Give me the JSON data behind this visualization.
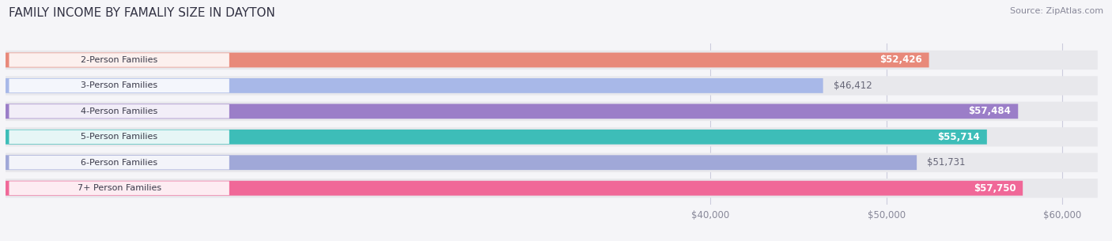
{
  "title": "FAMILY INCOME BY FAMALIY SIZE IN DAYTON",
  "source": "Source: ZipAtlas.com",
  "categories": [
    "2-Person Families",
    "3-Person Families",
    "4-Person Families",
    "5-Person Families",
    "6-Person Families",
    "7+ Person Families"
  ],
  "values": [
    52426,
    46412,
    57484,
    55714,
    51731,
    57750
  ],
  "bar_colors": [
    "#E8897A",
    "#A8B8E8",
    "#9B7EC8",
    "#3DBDB8",
    "#A0A8D8",
    "#F06898"
  ],
  "bar_track_color": "#E8E8EC",
  "value_labels": [
    "$52,426",
    "$46,412",
    "$57,484",
    "$55,714",
    "$51,731",
    "$57,750"
  ],
  "label_inside": [
    true,
    false,
    true,
    true,
    false,
    true
  ],
  "xmax": 62000,
  "xticks": [
    40000,
    50000,
    60000
  ],
  "xtick_labels": [
    "$40,000",
    "$50,000",
    "$60,000"
  ],
  "background_color": "#F5F5F8",
  "title_fontsize": 11,
  "source_fontsize": 8,
  "bar_label_fontsize": 8.5,
  "category_fontsize": 8
}
